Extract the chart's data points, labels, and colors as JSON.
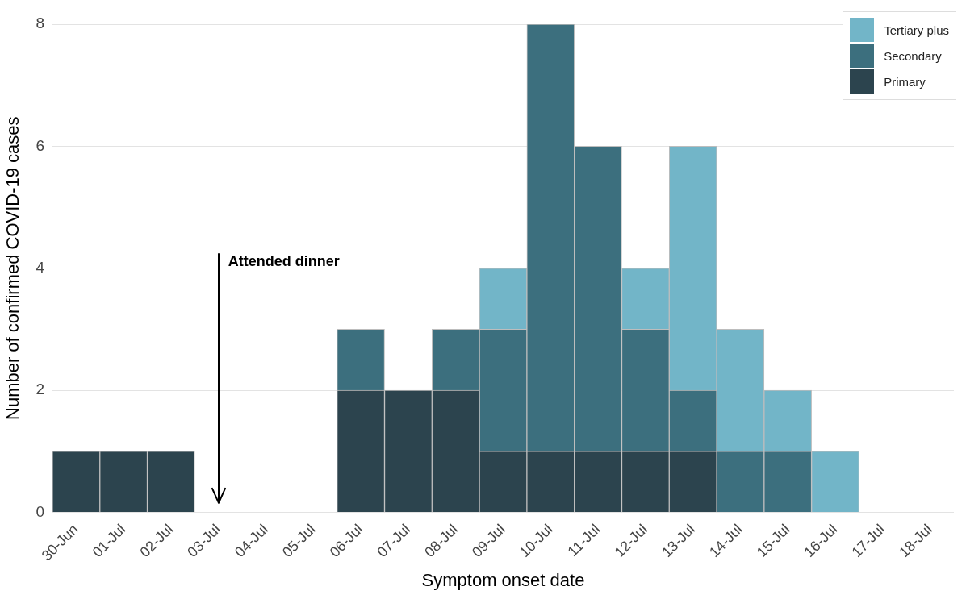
{
  "chart_data": {
    "type": "bar",
    "stacked": true,
    "xlabel": "Symptom onset date",
    "ylabel": "Number of confirmed COVID-19 cases",
    "categories": [
      "30-Jun",
      "01-Jul",
      "02-Jul",
      "03-Jul",
      "04-Jul",
      "05-Jul",
      "06-Jul",
      "07-Jul",
      "08-Jul",
      "09-Jul",
      "10-Jul",
      "11-Jul",
      "12-Jul",
      "13-Jul",
      "14-Jul",
      "15-Jul",
      "16-Jul",
      "17-Jul",
      "18-Jul"
    ],
    "series": [
      {
        "name": "Primary",
        "color": "#2c444e",
        "values": [
          1,
          1,
          1,
          0,
          0,
          0,
          2,
          2,
          2,
          1,
          1,
          1,
          1,
          1,
          0,
          0,
          0,
          0,
          0
        ]
      },
      {
        "name": "Secondary",
        "color": "#3c6f7e",
        "values": [
          0,
          0,
          0,
          0,
          0,
          0,
          1,
          0,
          1,
          2,
          7,
          5,
          2,
          1,
          1,
          1,
          0,
          0,
          0
        ]
      },
      {
        "name": "Tertiary plus",
        "color": "#72b5c8",
        "values": [
          0,
          0,
          0,
          0,
          0,
          0,
          0,
          0,
          0,
          1,
          0,
          0,
          1,
          4,
          2,
          1,
          1,
          0,
          0
        ]
      }
    ],
    "ylim": [
      0,
      8
    ],
    "yticks": [
      0,
      2,
      4,
      6,
      8
    ],
    "grid": "y",
    "legend": "top right",
    "annotations": [
      "Attended dinner"
    ]
  }
}
